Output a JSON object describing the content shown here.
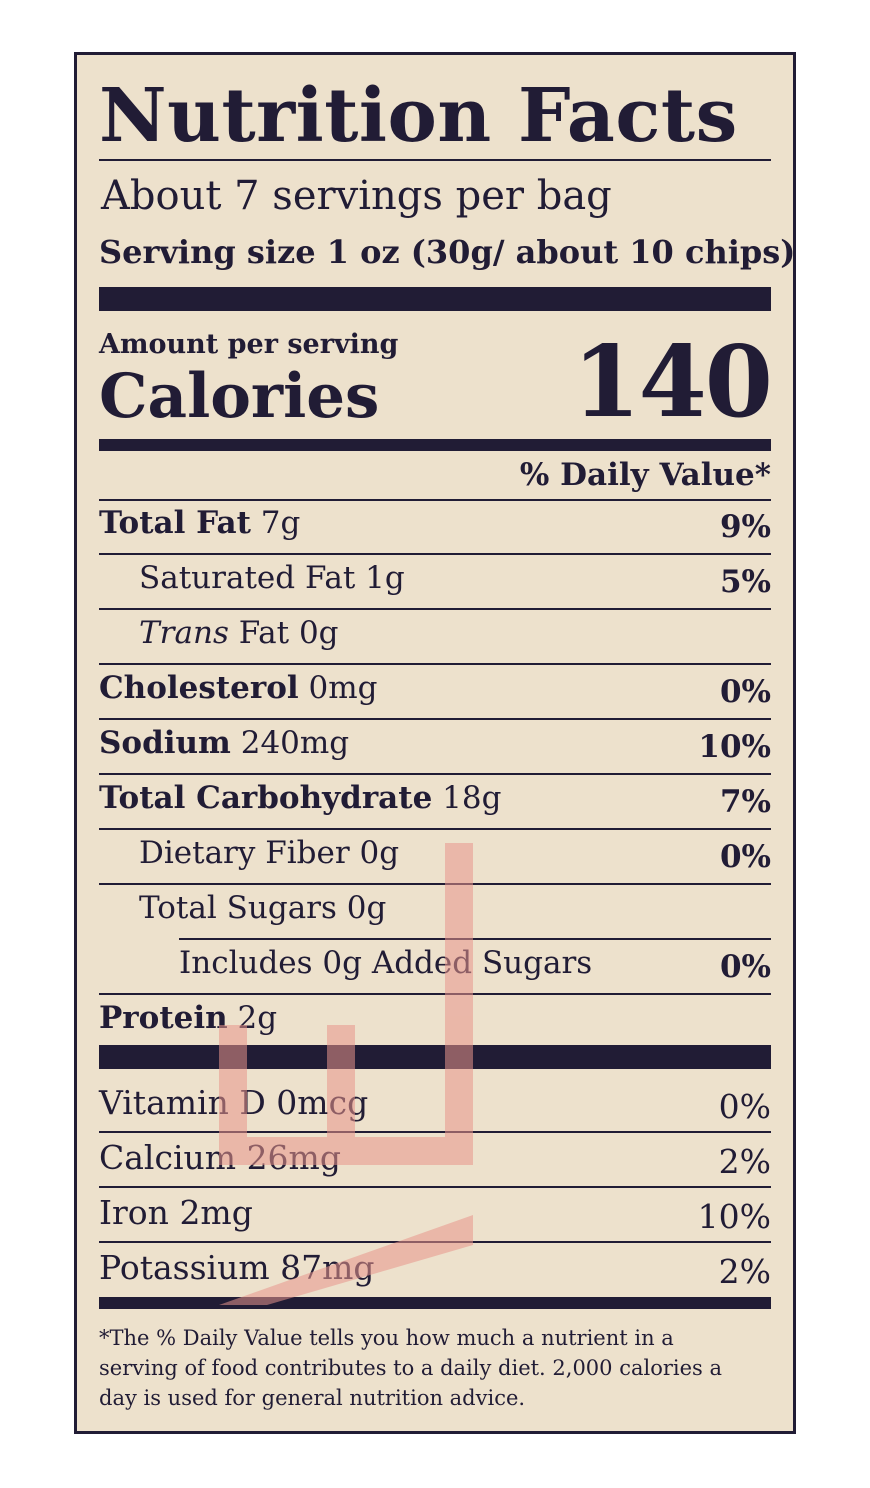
{
  "title": "Nutrition Facts",
  "servings_per_container": "About 7 servings per bag",
  "serving_size": "Serving size 1 oz (30g/ about 10 chips)",
  "amount_per_serving": "Amount per serving",
  "calories_label": "Calories",
  "calories_value": "140",
  "dv_header": "% Daily Value*",
  "nutrients": [
    {
      "name": "Total Fat",
      "amount": "7g",
      "dv": "9%"
    },
    {
      "name": "Saturated Fat",
      "amount": "1g",
      "dv": "5%"
    },
    {
      "name_italic": "Trans",
      "name": "Fat",
      "amount": "0g",
      "dv": ""
    },
    {
      "name": "Cholesterol",
      "amount": "0mg",
      "dv": "0%"
    },
    {
      "name": "Sodium",
      "amount": "240mg",
      "dv": "10%"
    },
    {
      "name": "Total Carbohydrate",
      "amount": "18g",
      "dv": "7%"
    },
    {
      "name": "Dietary Fiber",
      "amount": "0g",
      "dv": "0%"
    },
    {
      "name": "Total Sugars",
      "amount": "0g",
      "dv": ""
    },
    {
      "name": "Includes 0g Added Sugars",
      "amount": "",
      "dv": "0%"
    },
    {
      "name": "Protein",
      "amount": "2g",
      "dv": ""
    }
  ],
  "vitamins": [
    {
      "name": "Vitamin D",
      "amount": "0mcg",
      "dv": "0%"
    },
    {
      "name": "Calcium",
      "amount": "26mg",
      "dv": "2%"
    },
    {
      "name": "Iron",
      "amount": "2mg",
      "dv": "10%"
    },
    {
      "name": "Potassium",
      "amount": "87mg",
      "dv": "2%"
    }
  ],
  "footnote": "*The % Daily Value tells you how much a nutrient in a serving of food contributes to a daily diet. 2,000 calories a day is used for general nutrition advice.",
  "colors": {
    "ink": "#211c35",
    "background": "#ede1cc",
    "watermark": "#e8958c"
  }
}
